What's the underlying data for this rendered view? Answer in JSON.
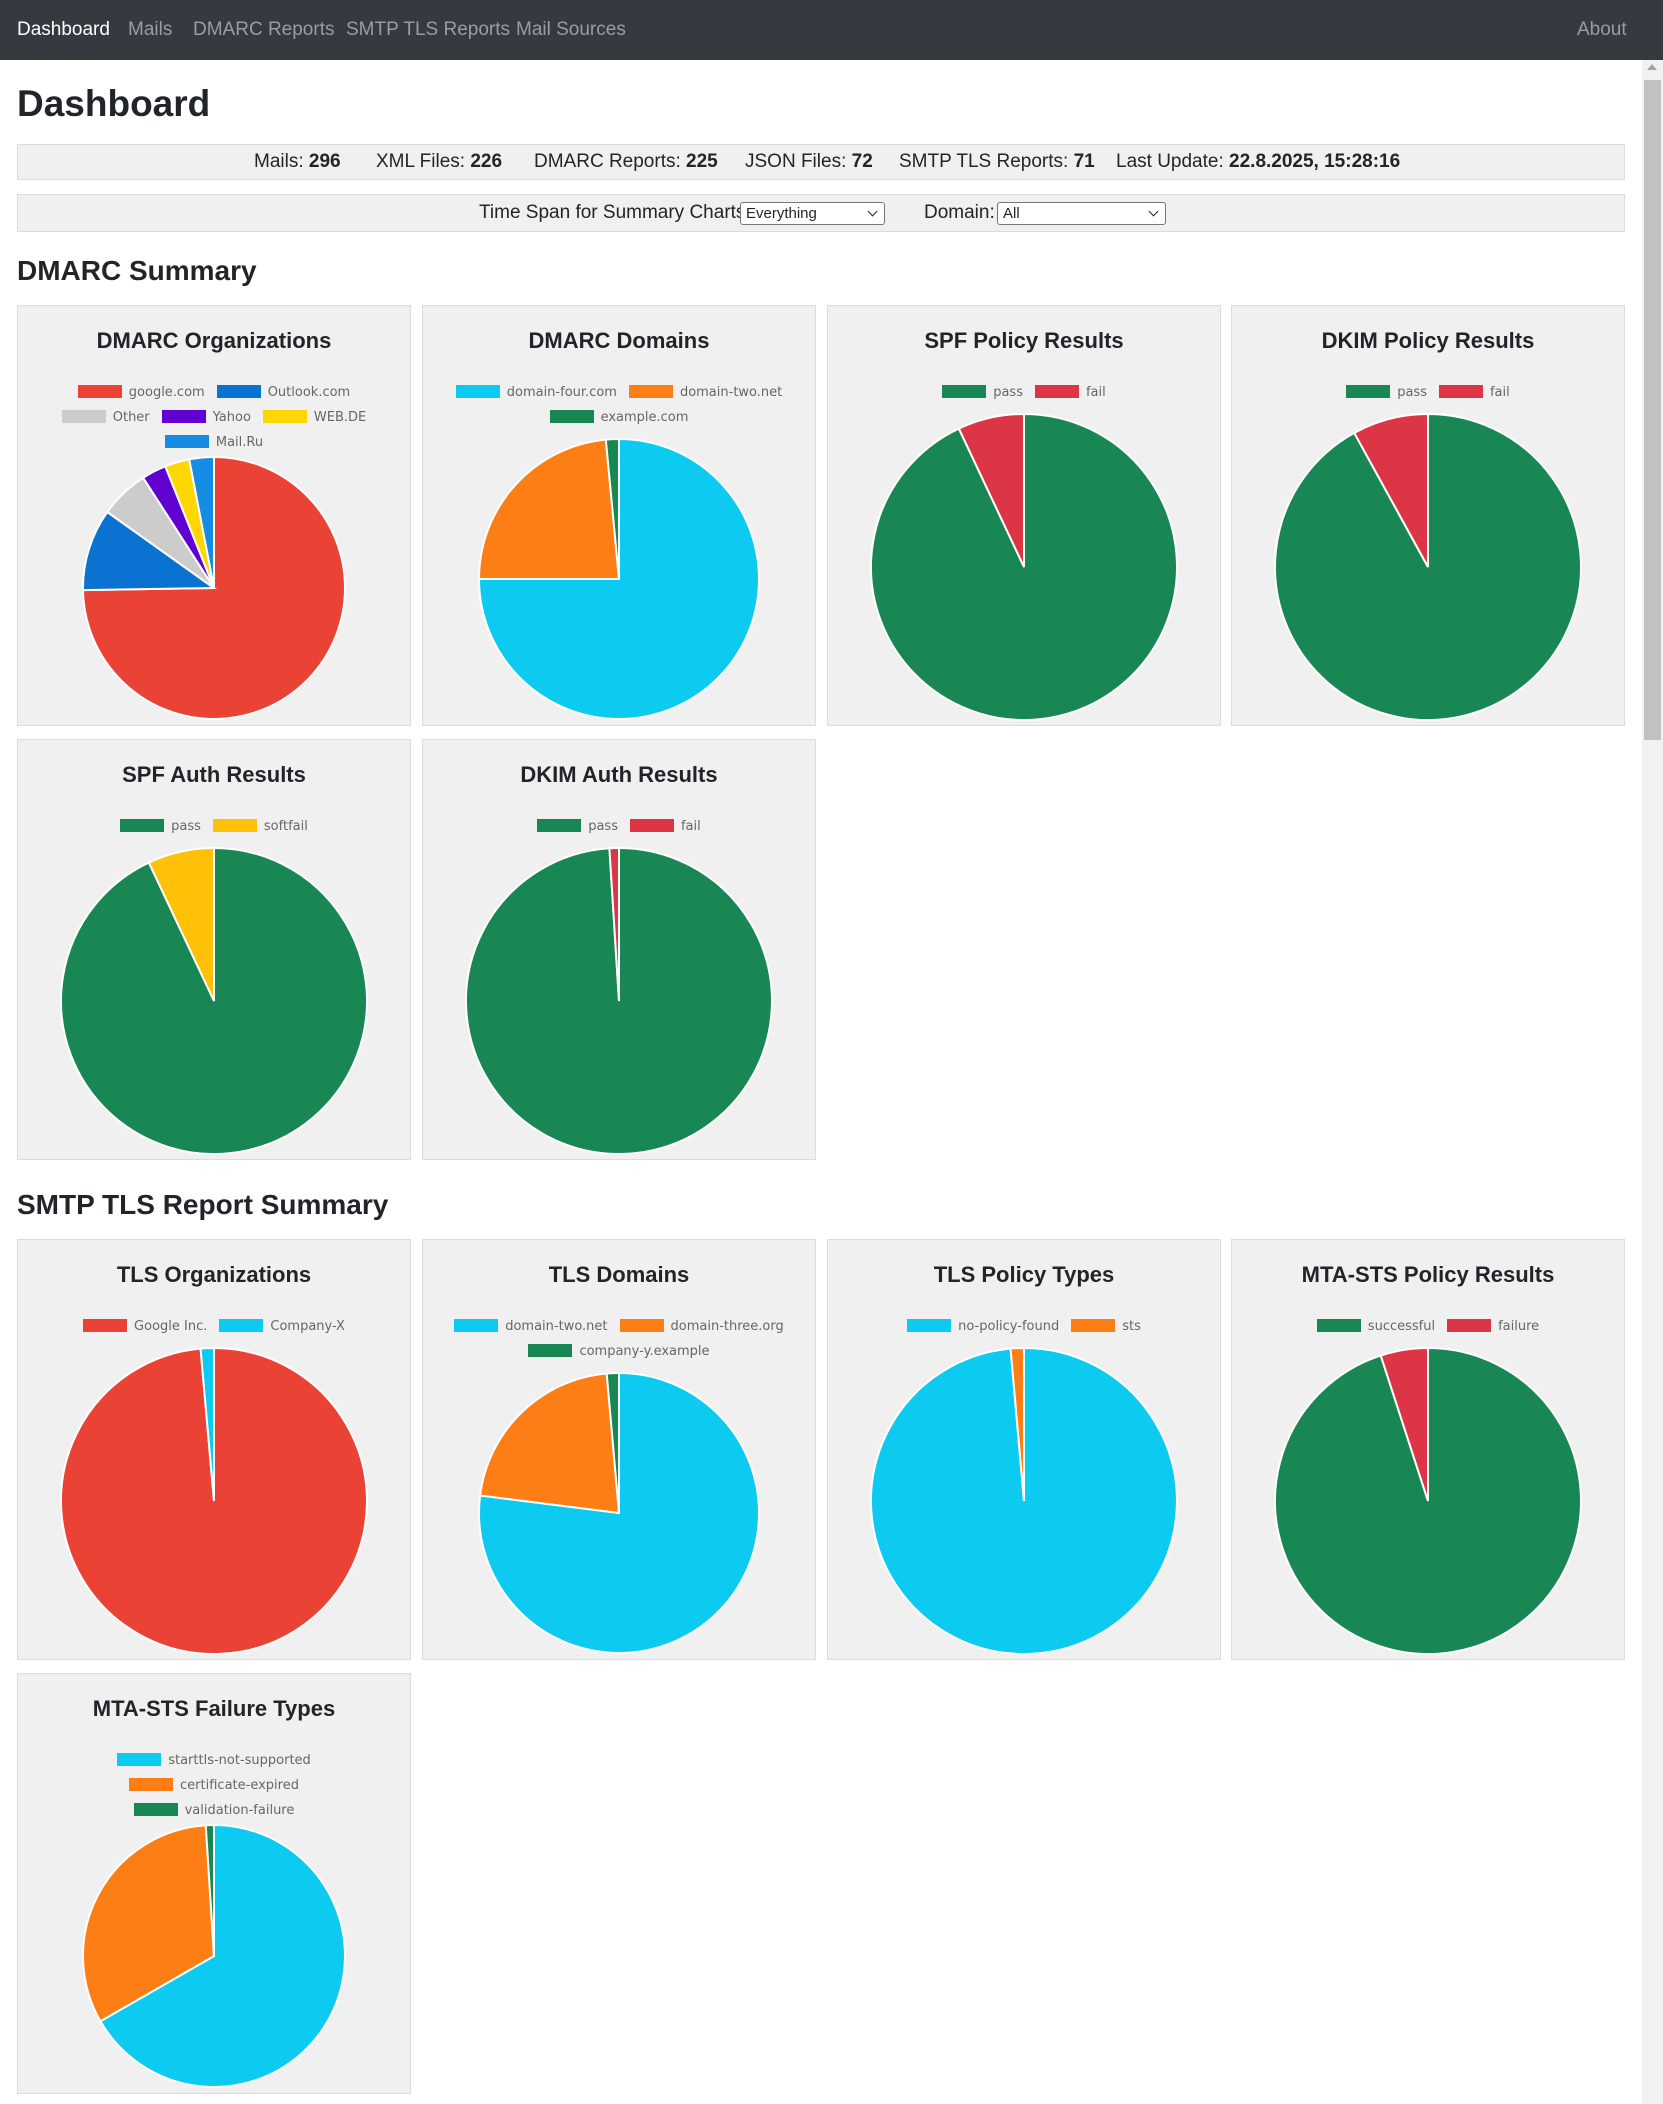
{
  "nav": {
    "items": [
      "Dashboard",
      "Mails",
      "DMARC Reports",
      "SMTP TLS Reports",
      "Mail Sources"
    ],
    "active": "Dashboard",
    "about": "About"
  },
  "page_title": "Dashboard",
  "stats": [
    {
      "label": "Mails:",
      "value": "296"
    },
    {
      "label": "XML Files:",
      "value": "226"
    },
    {
      "label": "DMARC Reports:",
      "value": "225"
    },
    {
      "label": "JSON Files:",
      "value": "72"
    },
    {
      "label": "SMTP TLS Reports:",
      "value": "71"
    },
    {
      "label": "Last Update:",
      "value": "22.8.2025, 15:28:16"
    }
  ],
  "filters": {
    "timespan_label": "Time Span for Summary Charts:",
    "timespan_value": "Everything",
    "domain_label": "Domain:",
    "domain_value": "All"
  },
  "sections": {
    "dmarc": "DMARC Summary",
    "tls": "SMTP TLS Report Summary"
  },
  "chart_data": [
    {
      "id": "dmarc-organizations",
      "type": "pie",
      "title": "DMARC Organizations",
      "legend_rows": [
        2,
        3,
        1
      ],
      "series": [
        {
          "name": "google.com",
          "value": 74,
          "color": "#ea4335"
        },
        {
          "name": "Outlook.com",
          "value": 10,
          "color": "#0a73d1"
        },
        {
          "name": "Other",
          "value": 6,
          "color": "#cccccc"
        },
        {
          "name": "Yahoo",
          "value": 3,
          "color": "#6001d2"
        },
        {
          "name": "WEB.DE",
          "value": 3,
          "color": "#ffd700"
        },
        {
          "name": "Mail.Ru",
          "value": 3,
          "color": "#168de2"
        }
      ]
    },
    {
      "id": "dmarc-domains",
      "type": "pie",
      "title": "DMARC Domains",
      "legend_rows": [
        2,
        1
      ],
      "series": [
        {
          "name": "domain-four.com",
          "value": 75,
          "color": "#0dcaf0"
        },
        {
          "name": "domain-two.net",
          "value": 23.5,
          "color": "#fd7e14"
        },
        {
          "name": "example.com",
          "value": 1.5,
          "color": "#198754"
        }
      ]
    },
    {
      "id": "spf-policy-results",
      "type": "pie",
      "title": "SPF Policy Results",
      "legend_rows": [
        2
      ],
      "series": [
        {
          "name": "pass",
          "value": 93,
          "color": "#198754"
        },
        {
          "name": "fail",
          "value": 7,
          "color": "#dc3545"
        }
      ]
    },
    {
      "id": "dkim-policy-results",
      "type": "pie",
      "title": "DKIM Policy Results",
      "legend_rows": [
        2
      ],
      "series": [
        {
          "name": "pass",
          "value": 92,
          "color": "#198754"
        },
        {
          "name": "fail",
          "value": 8,
          "color": "#dc3545"
        }
      ]
    },
    {
      "id": "spf-auth-results",
      "type": "pie",
      "title": "SPF Auth Results",
      "legend_rows": [
        2
      ],
      "series": [
        {
          "name": "pass",
          "value": 93,
          "color": "#198754"
        },
        {
          "name": "softfail",
          "value": 7,
          "color": "#ffc107"
        }
      ]
    },
    {
      "id": "dkim-auth-results",
      "type": "pie",
      "title": "DKIM Auth Results",
      "legend_rows": [
        2
      ],
      "series": [
        {
          "name": "pass",
          "value": 99,
          "color": "#198754"
        },
        {
          "name": "fail",
          "value": 1,
          "color": "#dc3545"
        }
      ]
    },
    {
      "id": "tls-organizations",
      "type": "pie",
      "title": "TLS Organizations",
      "legend_rows": [
        2
      ],
      "series": [
        {
          "name": "Google Inc.",
          "value": 98.6,
          "color": "#ea4335"
        },
        {
          "name": "Company-X",
          "value": 1.4,
          "color": "#0dcaf0"
        }
      ]
    },
    {
      "id": "tls-domains",
      "type": "pie",
      "title": "TLS Domains",
      "legend_rows": [
        2,
        1
      ],
      "series": [
        {
          "name": "domain-two.net",
          "value": 77,
          "color": "#0dcaf0"
        },
        {
          "name": "domain-three.org",
          "value": 21.6,
          "color": "#fd7e14"
        },
        {
          "name": "company-y.example",
          "value": 1.4,
          "color": "#198754"
        }
      ]
    },
    {
      "id": "tls-policy-types",
      "type": "pie",
      "title": "TLS Policy Types",
      "legend_rows": [
        2
      ],
      "series": [
        {
          "name": "no-policy-found",
          "value": 98.6,
          "color": "#0dcaf0"
        },
        {
          "name": "sts",
          "value": 1.4,
          "color": "#fd7e14"
        }
      ]
    },
    {
      "id": "mta-sts-policy-results",
      "type": "pie",
      "title": "MTA-STS Policy Results",
      "legend_rows": [
        2
      ],
      "series": [
        {
          "name": "successful",
          "value": 95,
          "color": "#198754"
        },
        {
          "name": "failure",
          "value": 5,
          "color": "#dc3545"
        }
      ]
    },
    {
      "id": "mta-sts-failure-types",
      "type": "pie",
      "title": "MTA-STS Failure Types",
      "legend_rows": [
        1,
        1,
        1
      ],
      "series": [
        {
          "name": "starttls-not-supported",
          "value": 66.7,
          "color": "#0dcaf0"
        },
        {
          "name": "certificate-expired",
          "value": 32.3,
          "color": "#fd7e14"
        },
        {
          "name": "validation-failure",
          "value": 1,
          "color": "#198754"
        }
      ]
    }
  ]
}
